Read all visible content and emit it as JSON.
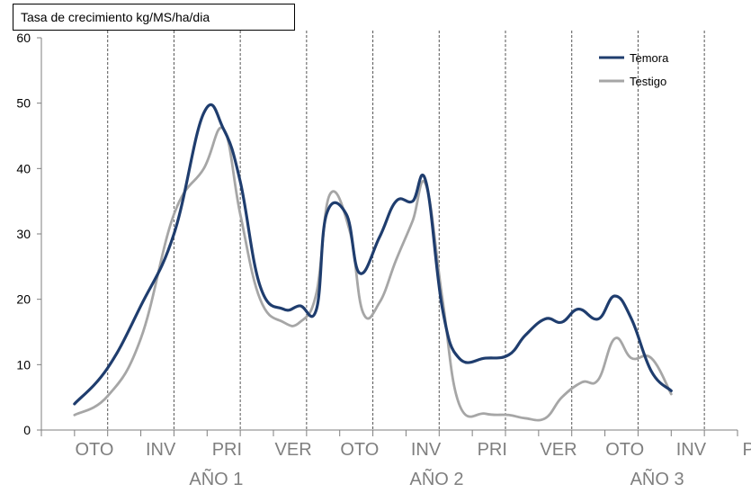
{
  "chart_data": {
    "type": "line",
    "ylabel": "Tasa de crecimiento kg/MS/ha/dia",
    "ylim": [
      0,
      60
    ],
    "yticks": [
      "0",
      "10",
      "20",
      "30",
      "40",
      "50",
      "60"
    ],
    "seasons": [
      "OTO",
      "INV",
      "PRI",
      "VER",
      "OTO",
      "INV",
      "PRI",
      "VER",
      "OTO",
      "INV",
      "PRI"
    ],
    "years": [
      "AÑO 1",
      "AÑO 2",
      "AÑO 3"
    ],
    "x_range": [
      0,
      21
    ],
    "legend_position": "top-right",
    "grid": false,
    "series": [
      {
        "name": "Temora",
        "color": "#1f3d6e",
        "points": [
          [
            1,
            4
          ],
          [
            2,
            9.5
          ],
          [
            3,
            19
          ],
          [
            4,
            30
          ],
          [
            4.9,
            48.5
          ],
          [
            5.5,
            46
          ],
          [
            6,
            38
          ],
          [
            6.6,
            22
          ],
          [
            7.3,
            18.5
          ],
          [
            7.8,
            19
          ],
          [
            8.3,
            18.5
          ],
          [
            8.6,
            33
          ],
          [
            9.2,
            33
          ],
          [
            9.6,
            24
          ],
          [
            10.2,
            29.5
          ],
          [
            10.7,
            35
          ],
          [
            11.2,
            35
          ],
          [
            11.6,
            38
          ],
          [
            12.1,
            18.5
          ],
          [
            12.6,
            11
          ],
          [
            13.4,
            11
          ],
          [
            14.1,
            11.5
          ],
          [
            14.6,
            14.5
          ],
          [
            15.2,
            17
          ],
          [
            15.7,
            16.5
          ],
          [
            16.2,
            18.5
          ],
          [
            16.8,
            17
          ],
          [
            17.3,
            20.5
          ],
          [
            17.8,
            17
          ],
          [
            18.4,
            9
          ],
          [
            19,
            6
          ]
        ]
      },
      {
        "name": "Testigo",
        "color": "#a6a6a6",
        "points": [
          [
            1,
            2.3
          ],
          [
            2,
            5.2
          ],
          [
            3,
            14
          ],
          [
            4,
            33
          ],
          [
            4.9,
            40
          ],
          [
            5.5,
            46
          ],
          [
            6,
            33
          ],
          [
            6.6,
            20
          ],
          [
            7.3,
            16.5
          ],
          [
            7.8,
            16.5
          ],
          [
            8.3,
            21
          ],
          [
            8.7,
            36
          ],
          [
            9.3,
            30.5
          ],
          [
            9.7,
            18
          ],
          [
            10.2,
            19.5
          ],
          [
            10.7,
            26
          ],
          [
            11.2,
            32
          ],
          [
            11.6,
            37.5
          ],
          [
            12.1,
            20
          ],
          [
            12.6,
            4
          ],
          [
            13.4,
            2.5
          ],
          [
            14.1,
            2.3
          ],
          [
            14.6,
            1.8
          ],
          [
            15.2,
            1.8
          ],
          [
            15.7,
            5
          ],
          [
            16.3,
            7.3
          ],
          [
            16.8,
            7.7
          ],
          [
            17.3,
            14
          ],
          [
            17.8,
            11
          ],
          [
            18.4,
            11
          ],
          [
            19,
            5.5
          ]
        ]
      }
    ]
  }
}
